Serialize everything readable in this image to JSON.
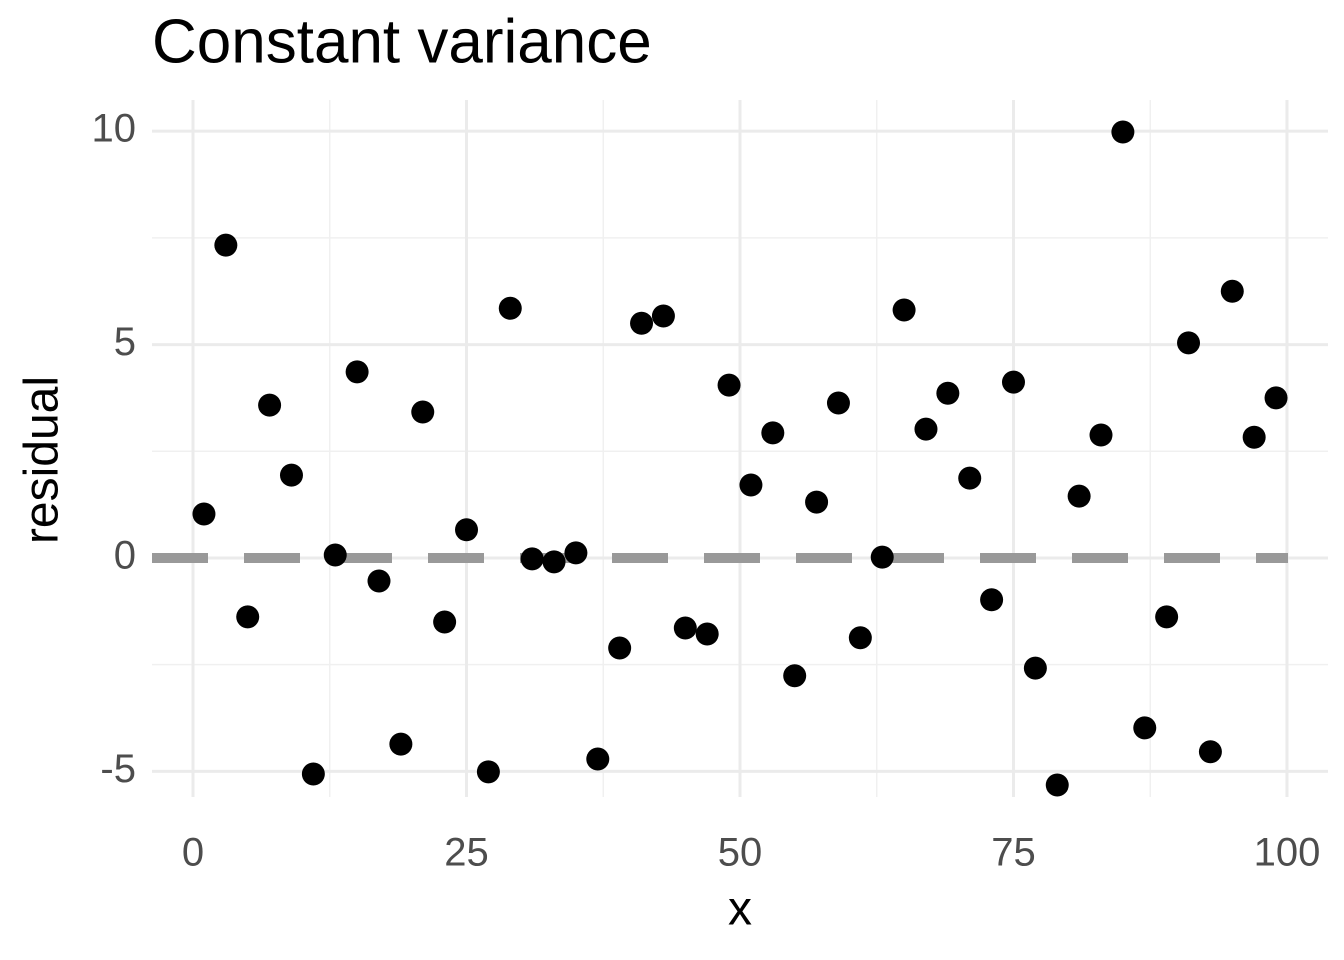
{
  "chart_data": {
    "type": "scatter",
    "title": "Constant variance",
    "x_label": "x",
    "y_label": "residual",
    "x": [
      1,
      3,
      5,
      7,
      9,
      11,
      13,
      15,
      17,
      19,
      21,
      23,
      25,
      27,
      29,
      31,
      33,
      35,
      37,
      39,
      41,
      43,
      45,
      47,
      49,
      51,
      53,
      55,
      57,
      59,
      61,
      63,
      65,
      67,
      69,
      71,
      73,
      75,
      77,
      79,
      81,
      83,
      85,
      87,
      89,
      91,
      93,
      95,
      97,
      99
    ],
    "series": [
      {
        "color": "#000000",
        "values": [
          1.03,
          7.33,
          -1.38,
          3.58,
          1.94,
          -5.06,
          0.07,
          4.36,
          -0.54,
          -4.36,
          3.42,
          -1.5,
          0.66,
          -5.01,
          5.85,
          -0.02,
          -0.09,
          0.12,
          -4.71,
          -2.11,
          5.5,
          5.67,
          -1.64,
          -1.78,
          4.05,
          1.71,
          2.93,
          -2.76,
          1.31,
          3.63,
          -1.87,
          0.02,
          5.81,
          3.02,
          3.86,
          1.87,
          -0.98,
          4.12,
          -2.58,
          -5.32,
          1.45,
          2.88,
          9.98,
          -3.98,
          -1.38,
          5.04,
          -4.54,
          6.25,
          2.83,
          3.75
        ]
      }
    ],
    "xlim": [
      -3.75,
      103.75
    ],
    "ylim": [
      -5.6,
      10.73
    ],
    "xticks": [
      0,
      25,
      50,
      75,
      100
    ],
    "yticks": [
      -5,
      0,
      5,
      10
    ],
    "grid": true,
    "minor_grid": true,
    "hline": {
      "value": 0,
      "color": "#999999",
      "dashed": true
    }
  }
}
